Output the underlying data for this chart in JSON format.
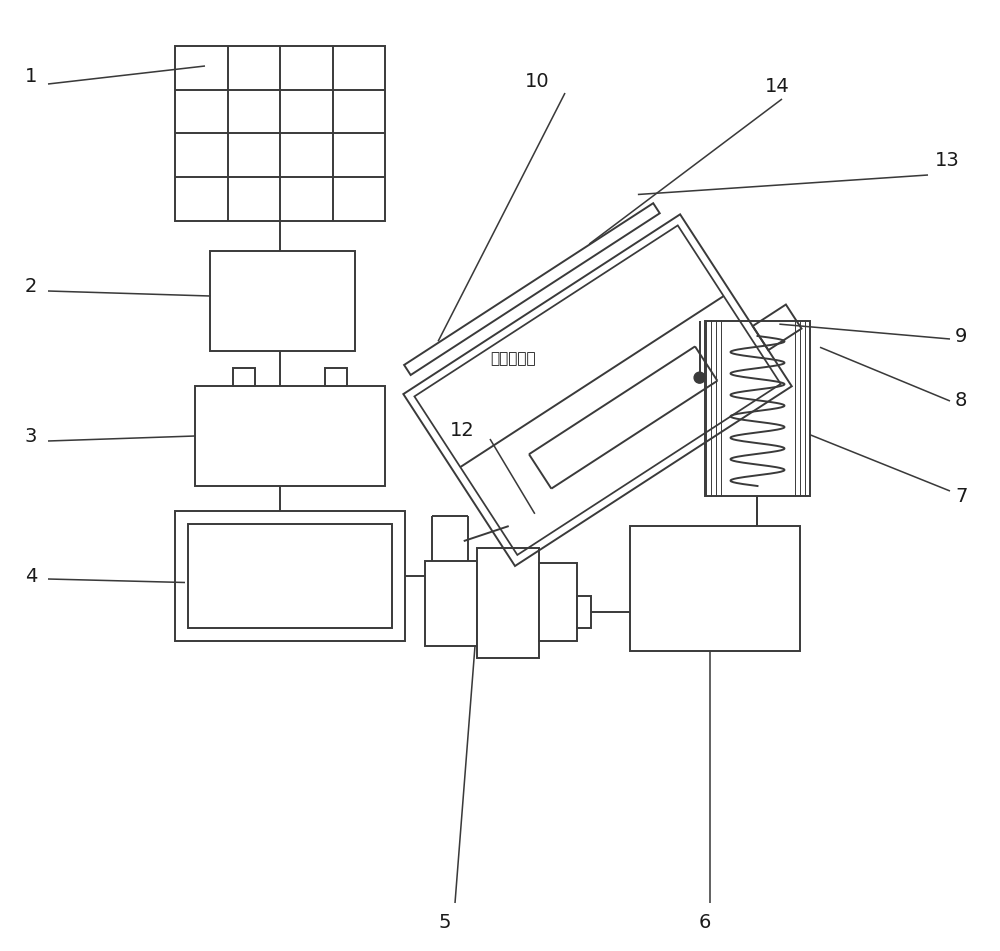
{
  "bg_color": "#ffffff",
  "line_color": "#3a3a3a",
  "label_color": "#1a1a1a",
  "font_size": 13,
  "chinese_font_size": 11,
  "number_font_size": 14
}
